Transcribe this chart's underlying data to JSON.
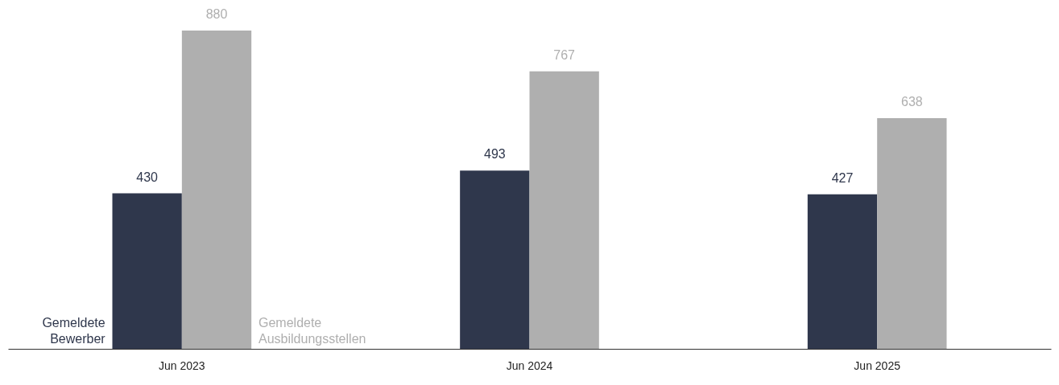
{
  "chart_data": {
    "type": "bar",
    "categories": [
      "Jun 2023",
      "Jun 2024",
      "Jun 2025"
    ],
    "series": [
      {
        "name": "Gemeldete Bewerber",
        "color": "#2f374c",
        "values": [
          430,
          493,
          427
        ]
      },
      {
        "name": "Gemeldete Ausbildungsstellen",
        "color": "#afafaf",
        "values": [
          880,
          767,
          638
        ]
      }
    ],
    "data_labels": true,
    "legend": false,
    "grid": false,
    "tick_labels": "x"
  }
}
